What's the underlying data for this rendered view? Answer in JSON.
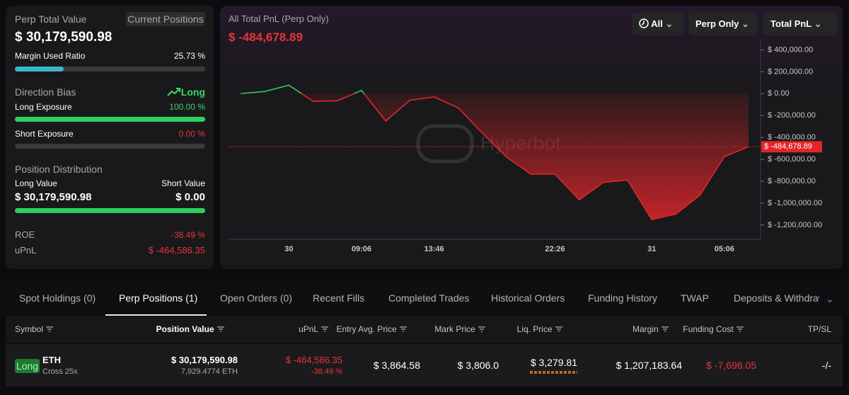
{
  "summary": {
    "title": "Perp Total Value",
    "badge": "Current Positions",
    "total": "$ 30,179,590.98",
    "margin": {
      "label": "Margin Used Ratio",
      "ratio": {
        "value": 25.73,
        "label": "25.73 %"
      }
    },
    "bias": {
      "label": "Direction Bias",
      "value": "Long"
    },
    "long_exposure": {
      "label": "Long Exposure",
      "ratio": {
        "value": 100.0,
        "label": "100.00 %"
      }
    },
    "short_exposure": {
      "label": "Short Exposure",
      "ratio": {
        "value": 0.0,
        "label": "0.00 %"
      }
    },
    "distribution": {
      "label": "Position Distribution",
      "long_label": "Long Value",
      "short_label": "Short Value",
      "long_value": "$ 30,179,590.98",
      "short_value": "$ 0.00"
    },
    "roe": {
      "label": "ROE",
      "value": "-38.49 %"
    },
    "upnl": {
      "label": "uPnL",
      "value": "$ -464,586.35"
    }
  },
  "controls": [
    "All",
    "Perp Only",
    "Total PnL"
  ],
  "pnl_chart": {
    "type": "line",
    "title": "All Total PnL (Perp Only)",
    "current": "$ -484,678.89",
    "watermark": "Hyperbot",
    "categories": [
      null,
      null,
      "30",
      null,
      null,
      "09:06",
      null,
      null,
      "13:46",
      null,
      null,
      null,
      null,
      "22:26",
      null,
      null,
      null,
      "31",
      null,
      null,
      "05:06",
      null
    ],
    "values": [
      0,
      20000,
      77000,
      -70000,
      -65000,
      30000,
      -250000,
      -60000,
      -30000,
      -130000,
      -360000,
      -580000,
      -735000,
      -735000,
      -970000,
      -810000,
      -790000,
      -1150000,
      -1100000,
      -925000,
      -575000,
      -484678.89
    ],
    "ylim": [
      -1330000,
      500000
    ],
    "yticks": [
      {
        "value": 400000,
        "label": "$ 400,000.00"
      },
      {
        "value": 200000,
        "label": "$ 200,000.00"
      },
      {
        "value": 0,
        "label": "$ 0.00"
      },
      {
        "value": -200000,
        "label": "$ -200,000.00"
      },
      {
        "value": -400000,
        "label": "$ -400,000.00"
      },
      {
        "value": -600000,
        "label": "$ -600,000.00"
      },
      {
        "value": -800000,
        "label": "$ -800,000.00"
      },
      {
        "value": -1000000,
        "label": "$ -1,000,000.00"
      },
      {
        "value": -1200000,
        "label": "$ -1,200,000.00"
      }
    ],
    "colors": {
      "positive": "#2ecc5a",
      "negative": "#e0262b"
    }
  },
  "tabs": {
    "items": [
      "Spot Holdings (0)",
      "Perp Positions (1)",
      "Open Orders (0)",
      "Recent Fills",
      "Completed Trades",
      "Historical Orders",
      "Funding History",
      "TWAP",
      "Deposits & Withdraw"
    ],
    "active": 1
  },
  "table": {
    "headers": [
      "Symbol",
      "Position Value",
      "uPnL",
      "Entry Avg. Price",
      "Mark Price",
      "Liq. Price",
      "Margin",
      "Funding Cost",
      "TP/SL"
    ],
    "rows": [
      {
        "side": "Long",
        "symbol": "ETH",
        "mode": "Cross 25x",
        "position_value": "$ 30,179,590.98",
        "size": "7,929.4774 ETH",
        "upnl": "$ -464,586.35",
        "upnl_pct": "-38.49 %",
        "entry": "$ 3,864.58",
        "mark": "$ 3,806.0",
        "liq": "$ 3,279.81",
        "margin": "$ 1,207,183.64",
        "funding": "$ -7,696.05",
        "tpsl": "-/-"
      }
    ]
  }
}
